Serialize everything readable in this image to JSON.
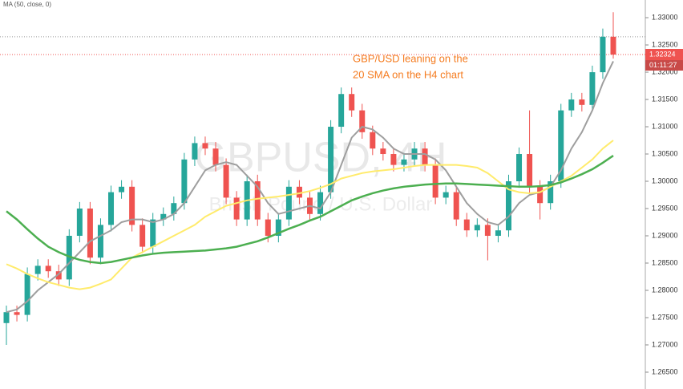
{
  "chart_data": {
    "type": "candlestick",
    "indicator_label": "MA (50, close, 0)",
    "watermark": "GBPUSD, 4H",
    "watermark_subtitle": "British Pound / U.S. Dollar",
    "annotation": [
      "GBP/USD leaning on the",
      "20 SMA on the H4 chart"
    ],
    "annotation_color": "#f57c20",
    "up_color": "#26a69a",
    "down_color": "#ef5350",
    "open": [
      1.274,
      1.276,
      1.2755,
      1.283,
      1.2845,
      1.2835,
      1.282,
      1.29,
      1.295,
      1.286,
      1.292,
      1.298,
      1.299,
      1.292,
      1.288,
      1.293,
      1.294,
      1.296,
      1.304,
      1.307,
      1.306,
      1.303,
      1.297,
      1.293,
      1.3,
      1.293,
      1.29,
      1.293,
      1.299,
      1.297,
      1.294,
      1.298,
      1.31,
      1.316,
      1.313,
      1.309,
      1.306,
      1.305,
      1.303,
      1.304,
      1.306,
      1.303,
      1.297,
      1.298,
      1.293,
      1.291,
      1.292,
      1.29,
      1.291,
      1.3,
      1.305,
      1.299,
      1.296,
      1.3,
      1.313,
      1.315,
      1.314,
      1.32,
      1.3265
    ],
    "high": [
      1.2772,
      1.2772,
      1.2842,
      1.2857,
      1.2857,
      1.2847,
      1.2912,
      1.2962,
      1.2962,
      1.2932,
      1.2992,
      1.3002,
      1.3002,
      1.2932,
      1.2942,
      1.2952,
      1.2972,
      1.3052,
      1.3082,
      1.3082,
      1.3072,
      1.3042,
      1.2982,
      1.3012,
      1.3012,
      1.2942,
      1.2942,
      1.3002,
      1.3002,
      1.2982,
      1.2992,
      1.3112,
      1.3172,
      1.3172,
      1.3142,
      1.3102,
      1.3072,
      1.3062,
      1.3052,
      1.3072,
      1.3072,
      1.3042,
      1.2992,
      1.2992,
      1.2942,
      1.2932,
      1.2932,
      1.2922,
      1.3012,
      1.3062,
      1.313,
      1.3002,
      1.3012,
      1.3142,
      1.3162,
      1.3162,
      1.3212,
      1.328,
      1.331
    ],
    "low": [
      1.27,
      1.2743,
      1.2743,
      1.2818,
      1.2823,
      1.2808,
      1.2808,
      1.2888,
      1.2848,
      1.2848,
      1.2908,
      1.2968,
      1.2908,
      1.2868,
      1.2868,
      1.2918,
      1.2928,
      1.2948,
      1.3028,
      1.3048,
      1.3018,
      1.2958,
      1.2918,
      1.2918,
      1.2918,
      1.2888,
      1.2888,
      1.2918,
      1.2958,
      1.2928,
      1.2928,
      1.2968,
      1.3088,
      1.3118,
      1.3078,
      1.3048,
      1.3038,
      1.3018,
      1.3018,
      1.3028,
      1.3018,
      1.2958,
      1.2958,
      1.2918,
      1.2898,
      1.2898,
      1.2855,
      1.2888,
      1.2898,
      1.2988,
      1.2978,
      1.293,
      1.2948,
      1.2988,
      1.3118,
      1.3128,
      1.3128,
      1.3188,
      1.3225
    ],
    "close": [
      1.276,
      1.2755,
      1.283,
      1.2845,
      1.2835,
      1.282,
      1.29,
      1.295,
      1.286,
      1.292,
      1.298,
      1.299,
      1.292,
      1.288,
      1.293,
      1.294,
      1.296,
      1.304,
      1.307,
      1.306,
      1.303,
      1.297,
      1.293,
      1.3,
      1.293,
      1.29,
      1.293,
      1.299,
      1.297,
      1.294,
      1.298,
      1.31,
      1.316,
      1.313,
      1.309,
      1.306,
      1.305,
      1.303,
      1.304,
      1.306,
      1.303,
      1.297,
      1.298,
      1.293,
      1.291,
      1.292,
      1.29,
      1.291,
      1.3,
      1.305,
      1.299,
      1.296,
      1.3,
      1.313,
      1.315,
      1.314,
      1.32,
      1.3265,
      1.32324
    ],
    "series": [
      {
        "color": "#9e9e9e",
        "values": [
          1.276,
          1.2765,
          1.278,
          1.28,
          1.2815,
          1.283,
          1.285,
          1.287,
          1.289,
          1.29,
          1.291,
          1.2925,
          1.293,
          1.293,
          1.2925,
          1.293,
          1.294,
          1.296,
          1.299,
          1.302,
          1.303,
          1.3035,
          1.303,
          1.301,
          1.299,
          1.296,
          1.294,
          1.2945,
          1.295,
          1.2955,
          1.295,
          1.298,
          1.303,
          1.308,
          1.31,
          1.3095,
          1.308,
          1.306,
          1.305,
          1.305,
          1.305,
          1.304,
          1.302,
          1.299,
          1.296,
          1.294,
          1.2925,
          1.292,
          1.2935,
          1.296,
          1.2975,
          1.298,
          1.299,
          1.302,
          1.306,
          1.309,
          1.313,
          1.318,
          1.322
        ]
      },
      {
        "color": "#ffeb6b",
        "values": [
          1.2848,
          1.284,
          1.283,
          1.2822,
          1.2815,
          1.281,
          1.2805,
          1.2802,
          1.2805,
          1.2812,
          1.282,
          1.284,
          1.286,
          1.287,
          1.288,
          1.289,
          1.29,
          1.291,
          1.292,
          1.2935,
          1.2945,
          1.2955,
          1.296,
          1.2965,
          1.2968,
          1.297,
          1.2972,
          1.2975,
          1.2978,
          1.2982,
          1.2988,
          1.2995,
          1.3005,
          1.301,
          1.3015,
          1.3018,
          1.302,
          1.3022,
          1.3025,
          1.3028,
          1.303,
          1.303,
          1.303,
          1.303,
          1.3028,
          1.3025,
          1.3015,
          1.3,
          1.2985,
          1.298,
          1.2978,
          1.298,
          1.299,
          1.3,
          1.301,
          1.3025,
          1.304,
          1.306,
          1.3075
        ]
      },
      {
        "color": "#4caf50",
        "values": [
          1.2945,
          1.293,
          1.2912,
          1.2895,
          1.288,
          1.287,
          1.2862,
          1.2856,
          1.2852,
          1.285,
          1.2852,
          1.2856,
          1.286,
          1.2864,
          1.2867,
          1.2869,
          1.287,
          1.2871,
          1.2872,
          1.2873,
          1.2875,
          1.2877,
          1.288,
          1.2885,
          1.289,
          1.2897,
          1.2905,
          1.2913,
          1.292,
          1.2928,
          1.2935,
          1.2945,
          1.2955,
          1.2965,
          1.2972,
          1.2978,
          1.2983,
          1.2987,
          1.299,
          1.2992,
          1.2994,
          1.2995,
          1.2996,
          1.2996,
          1.2995,
          1.2994,
          1.2993,
          1.2992,
          1.2991,
          1.299,
          1.299,
          1.2991,
          1.2993,
          1.2998,
          1.3005,
          1.3013,
          1.3022,
          1.3034,
          1.3047
        ]
      }
    ],
    "reference_line": 1.3265,
    "last_price": {
      "value": 1.32324,
      "label": "1.32324"
    },
    "countdown": "01:11:27",
    "ylim": [
      1.26191,
      1.33324
    ],
    "yticks": [
      {
        "value": 1.33,
        "label": "1.33000"
      },
      {
        "value": 1.325,
        "label": "1.32500"
      },
      {
        "value": 1.32,
        "label": "1.32000"
      },
      {
        "value": 1.315,
        "label": "1.31500"
      },
      {
        "value": 1.31,
        "label": "1.31000"
      },
      {
        "value": 1.305,
        "label": "1.30500"
      },
      {
        "value": 1.3,
        "label": "1.30000"
      },
      {
        "value": 1.295,
        "label": "1.29500"
      },
      {
        "value": 1.29,
        "label": "1.29000"
      },
      {
        "value": 1.285,
        "label": "1.28500"
      },
      {
        "value": 1.28,
        "label": "1.28000"
      },
      {
        "value": 1.275,
        "label": "1.27500"
      },
      {
        "value": 1.27,
        "label": "1.27000"
      },
      {
        "value": 1.265,
        "label": "1.26500"
      }
    ]
  }
}
